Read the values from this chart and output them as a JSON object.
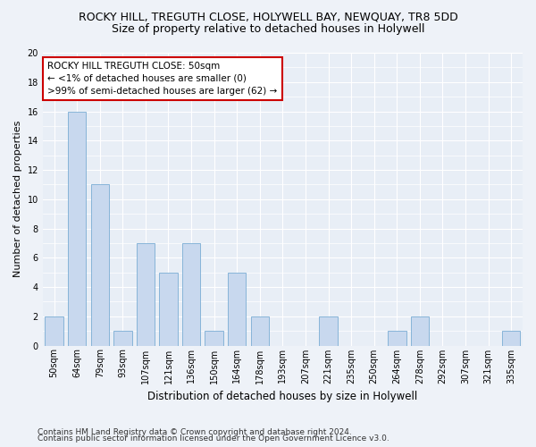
{
  "title": "ROCKY HILL, TREGUTH CLOSE, HOLYWELL BAY, NEWQUAY, TR8 5DD",
  "subtitle": "Size of property relative to detached houses in Holywell",
  "xlabel": "Distribution of detached houses by size in Holywell",
  "ylabel": "Number of detached properties",
  "categories": [
    "50sqm",
    "64sqm",
    "79sqm",
    "93sqm",
    "107sqm",
    "121sqm",
    "136sqm",
    "150sqm",
    "164sqm",
    "178sqm",
    "193sqm",
    "207sqm",
    "221sqm",
    "235sqm",
    "250sqm",
    "264sqm",
    "278sqm",
    "292sqm",
    "307sqm",
    "321sqm",
    "335sqm"
  ],
  "values": [
    2,
    16,
    11,
    1,
    7,
    5,
    7,
    1,
    5,
    2,
    0,
    0,
    2,
    0,
    0,
    1,
    2,
    0,
    0,
    0,
    1
  ],
  "bar_color": "#c8d8ee",
  "bar_edge_color": "#7aadd4",
  "annotation_title": "ROCKY HILL TREGUTH CLOSE: 50sqm",
  "annotation_line1": "← <1% of detached houses are smaller (0)",
  "annotation_line2": ">99% of semi-detached houses are larger (62) →",
  "annotation_box_color": "#ffffff",
  "annotation_box_edge": "#cc0000",
  "ylim": [
    0,
    20
  ],
  "yticks": [
    0,
    2,
    4,
    6,
    8,
    10,
    12,
    14,
    16,
    18,
    20
  ],
  "footer1": "Contains HM Land Registry data © Crown copyright and database right 2024.",
  "footer2": "Contains public sector information licensed under the Open Government Licence v3.0.",
  "bg_color": "#eef2f8",
  "plot_bg_color": "#e8eef6",
  "grid_color": "#ffffff",
  "title_fontsize": 9,
  "subtitle_fontsize": 9,
  "xlabel_fontsize": 8.5,
  "ylabel_fontsize": 8,
  "tick_fontsize": 7,
  "annotation_fontsize": 7.5,
  "footer_fontsize": 6.5
}
